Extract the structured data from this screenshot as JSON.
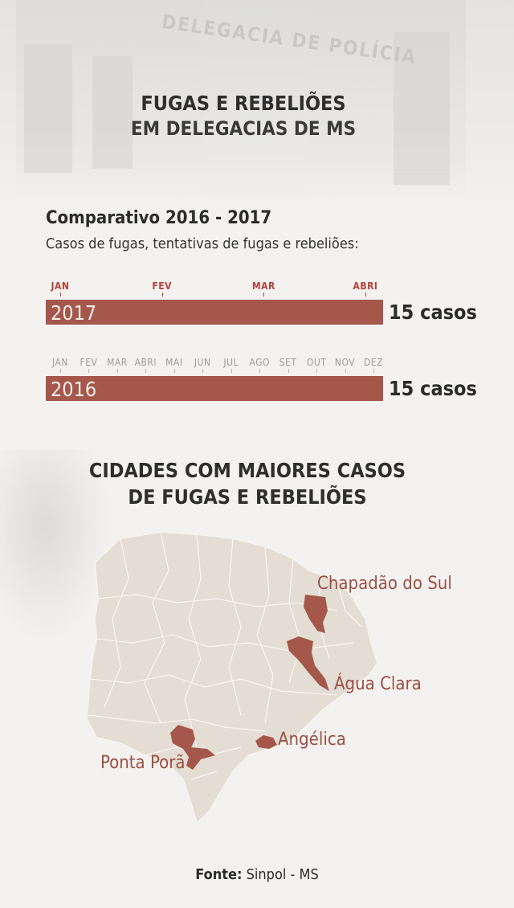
{
  "title": {
    "line1": "FUGAS E REBELIÕES",
    "line2": "EM DELEGACIAS DE MS"
  },
  "chart_data": {
    "type": "bar",
    "title": "Comparativo 2016 - 2017",
    "subtitle": "Casos de fugas, tentativas de fugas e rebeliões:",
    "series": [
      {
        "name": "2017",
        "period_months": [
          "JAN",
          "FEV",
          "MAR",
          "ABRI"
        ],
        "value": 15,
        "value_label": "15 casos"
      },
      {
        "name": "2016",
        "period_months": [
          "JAN",
          "FEV",
          "MAR",
          "ABRI",
          "MAI",
          "JUN",
          "JUL",
          "AGO",
          "SET",
          "OUT",
          "NOV",
          "DEZ"
        ],
        "value": 15,
        "value_label": "15 casos"
      }
    ],
    "colors": {
      "bar": "#a4574a",
      "highlight_month": "#b5413a",
      "muted_month": "#9c9c9c"
    }
  },
  "map": {
    "title_line1": "CIDADES COM MAIORES CASOS",
    "title_line2": "DE FUGAS E REBELIÕES",
    "cities": [
      "Chapadão do Sul",
      "Água Clara",
      "Angélica",
      "Ponta Porã"
    ],
    "colors": {
      "state": "#e3ddd3",
      "highlight": "#a4574a",
      "label": "#9c4f44"
    }
  },
  "source": {
    "label": "Fonte:",
    "value": " Sinpol - MS"
  }
}
